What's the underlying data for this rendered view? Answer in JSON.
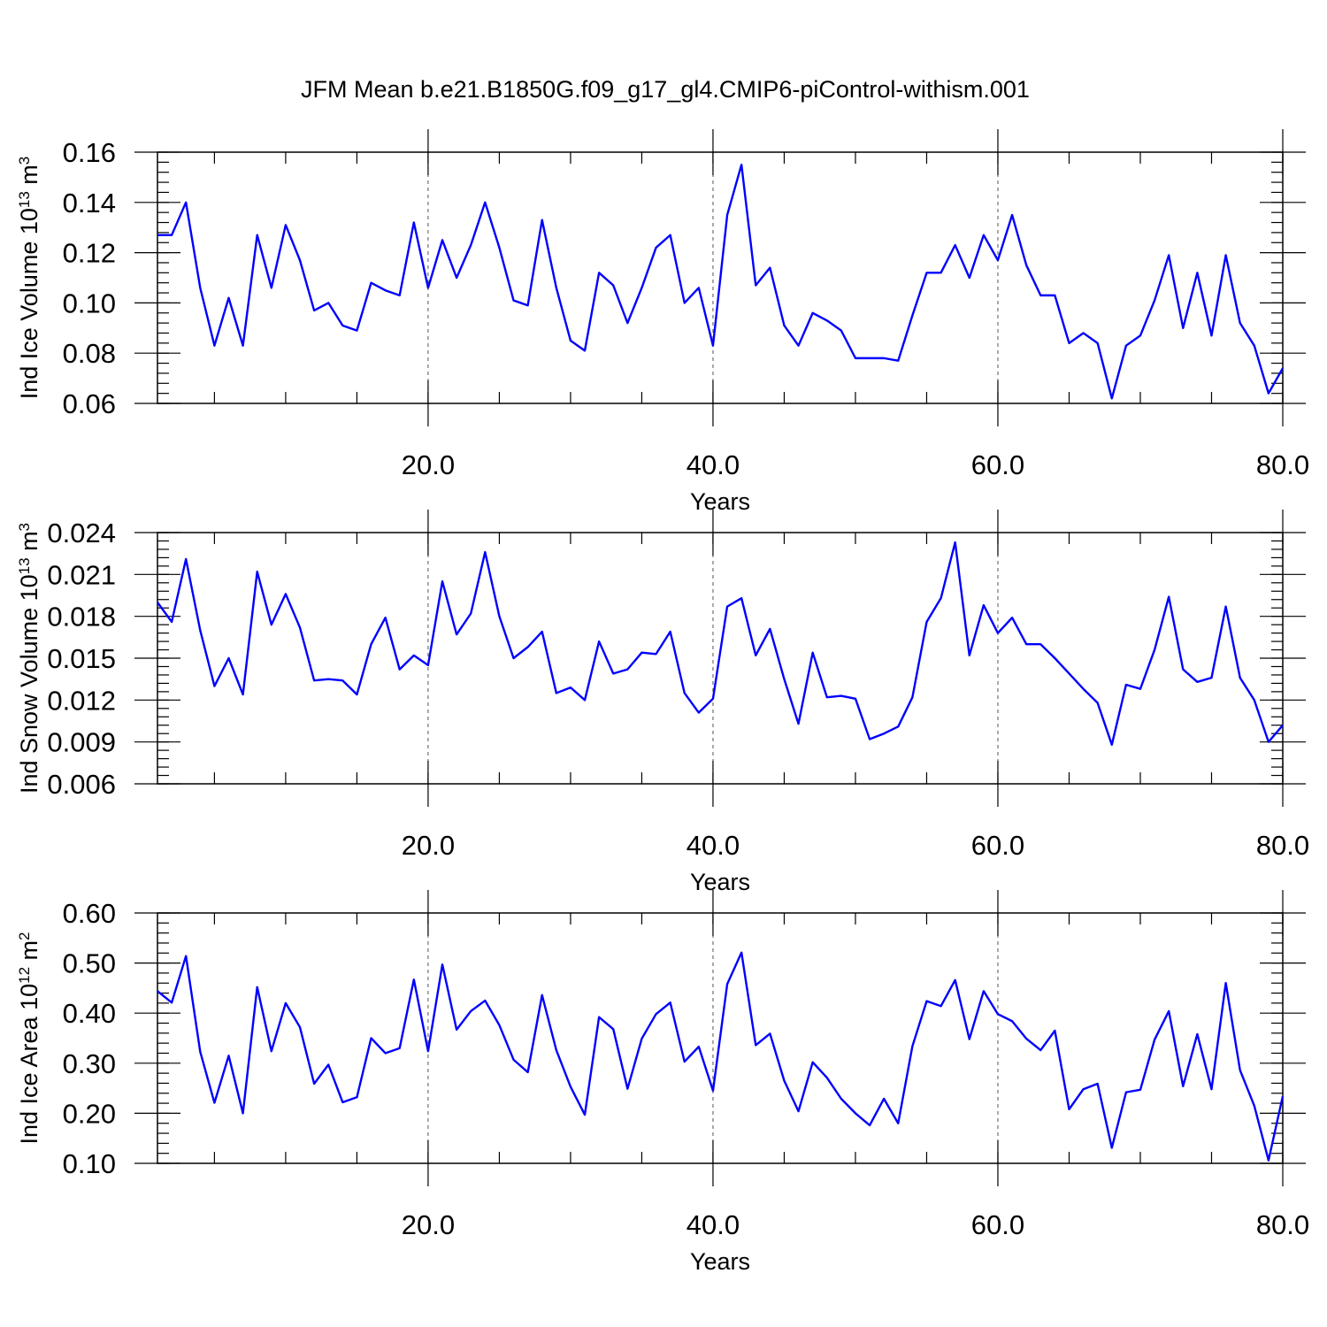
{
  "title": "JFM Mean b.e21.B1850G.f09_g17_gl4.CMIP6-piControl-withism.001",
  "colors": {
    "line": "#0000ff",
    "grid": "#555555",
    "axis": "#000000"
  },
  "chart_data": [
    {
      "type": "line",
      "xlabel": "Years",
      "ylabel_main": "Ind Ice Volume 10",
      "ylabel_exp": "13",
      "ylabel_unit": " m",
      "ylabel_unit_exp": "3",
      "xlim": [
        1,
        80
      ],
      "ylim": [
        0.06,
        0.16
      ],
      "xticks": [
        20,
        40,
        60,
        80
      ],
      "xtick_labels": [
        "20.0",
        "40.0",
        "60.0",
        "80.0"
      ],
      "yticks": [
        0.06,
        0.08,
        0.1,
        0.12,
        0.14,
        0.16
      ],
      "ytick_labels": [
        "0.06",
        "0.08",
        "0.10",
        "0.12",
        "0.14",
        "0.16"
      ],
      "grid_x": [
        20,
        40,
        60
      ],
      "series": [
        {
          "values": [
            0.127,
            0.127,
            0.14,
            0.106,
            0.083,
            0.102,
            0.083,
            0.127,
            0.106,
            0.131,
            0.117,
            0.097,
            0.1,
            0.091,
            0.089,
            0.108,
            0.105,
            0.103,
            0.132,
            0.106,
            0.125,
            0.11,
            0.123,
            0.14,
            0.122,
            0.101,
            0.099,
            0.133,
            0.106,
            0.085,
            0.081,
            0.112,
            0.107,
            0.092,
            0.106,
            0.122,
            0.127,
            0.1,
            0.106,
            0.083,
            0.135,
            0.155,
            0.107,
            0.114,
            0.091,
            0.083,
            0.096,
            0.093,
            0.089,
            0.078,
            0.078,
            0.078,
            0.077,
            0.095,
            0.112,
            0.112,
            0.123,
            0.11,
            0.127,
            0.117,
            0.135,
            0.115,
            0.103,
            0.103,
            0.084,
            0.088,
            0.084,
            0.062,
            0.083,
            0.087,
            0.101,
            0.119,
            0.09,
            0.112,
            0.087,
            0.119,
            0.092,
            0.083,
            0.064,
            0.074
          ]
        }
      ]
    },
    {
      "type": "line",
      "xlabel": "Years",
      "ylabel_main": "Ind Snow Volume 10",
      "ylabel_exp": "13",
      "ylabel_unit": " m",
      "ylabel_unit_exp": "3",
      "xlim": [
        1,
        80
      ],
      "ylim": [
        0.006,
        0.024
      ],
      "xticks": [
        20,
        40,
        60,
        80
      ],
      "xtick_labels": [
        "20.0",
        "40.0",
        "60.0",
        "80.0"
      ],
      "yticks": [
        0.006,
        0.009,
        0.012,
        0.015,
        0.018,
        0.021,
        0.024
      ],
      "ytick_labels": [
        "0.006",
        "0.009",
        "0.012",
        "0.015",
        "0.018",
        "0.021",
        "0.024"
      ],
      "grid_x": [
        20,
        40,
        60
      ],
      "series": [
        {
          "values": [
            0.019,
            0.0176,
            0.0221,
            0.017,
            0.013,
            0.015,
            0.0124,
            0.0212,
            0.0174,
            0.0196,
            0.0172,
            0.0134,
            0.0135,
            0.0134,
            0.0124,
            0.016,
            0.0179,
            0.0142,
            0.0152,
            0.0145,
            0.0205,
            0.0167,
            0.0182,
            0.0226,
            0.018,
            0.015,
            0.0158,
            0.0169,
            0.0125,
            0.0129,
            0.012,
            0.0162,
            0.0139,
            0.0142,
            0.0154,
            0.0153,
            0.0169,
            0.0125,
            0.0111,
            0.0121,
            0.0187,
            0.0193,
            0.0152,
            0.0171,
            0.0135,
            0.0103,
            0.0154,
            0.0122,
            0.0123,
            0.0121,
            0.0092,
            0.0096,
            0.0101,
            0.0122,
            0.0176,
            0.0193,
            0.0233,
            0.0152,
            0.0188,
            0.0168,
            0.0179,
            0.016,
            0.016,
            0.015,
            0.0139,
            0.0128,
            0.0118,
            0.0088,
            0.0131,
            0.0128,
            0.0156,
            0.0194,
            0.0142,
            0.0133,
            0.0136,
            0.0187,
            0.0136,
            0.012,
            0.009,
            0.0102
          ]
        }
      ]
    },
    {
      "type": "line",
      "xlabel": "Years",
      "ylabel_main": "Ind Ice Area 10",
      "ylabel_exp": "12",
      "ylabel_unit": " m",
      "ylabel_unit_exp": "2",
      "xlim": [
        1,
        80
      ],
      "ylim": [
        0.1,
        0.6
      ],
      "xticks": [
        20,
        40,
        60,
        80
      ],
      "xtick_labels": [
        "20.0",
        "40.0",
        "60.0",
        "80.0"
      ],
      "yticks": [
        0.1,
        0.2,
        0.3,
        0.4,
        0.5,
        0.6
      ],
      "ytick_labels": [
        "0.10",
        "0.20",
        "0.30",
        "0.40",
        "0.50",
        "0.60"
      ],
      "grid_x": [
        20,
        40,
        60
      ],
      "series": [
        {
          "values": [
            0.444,
            0.421,
            0.514,
            0.323,
            0.221,
            0.315,
            0.2,
            0.452,
            0.324,
            0.42,
            0.372,
            0.259,
            0.297,
            0.222,
            0.232,
            0.35,
            0.32,
            0.33,
            0.467,
            0.324,
            0.497,
            0.367,
            0.404,
            0.425,
            0.376,
            0.307,
            0.282,
            0.436,
            0.326,
            0.253,
            0.197,
            0.392,
            0.368,
            0.249,
            0.349,
            0.398,
            0.421,
            0.303,
            0.333,
            0.245,
            0.458,
            0.521,
            0.336,
            0.359,
            0.265,
            0.204,
            0.302,
            0.271,
            0.229,
            0.2,
            0.176,
            0.229,
            0.18,
            0.334,
            0.424,
            0.414,
            0.466,
            0.348,
            0.444,
            0.398,
            0.384,
            0.349,
            0.326,
            0.365,
            0.208,
            0.248,
            0.259,
            0.131,
            0.242,
            0.247,
            0.347,
            0.404,
            0.254,
            0.358,
            0.248,
            0.46,
            0.286,
            0.215,
            0.106,
            0.234
          ]
        }
      ]
    }
  ]
}
